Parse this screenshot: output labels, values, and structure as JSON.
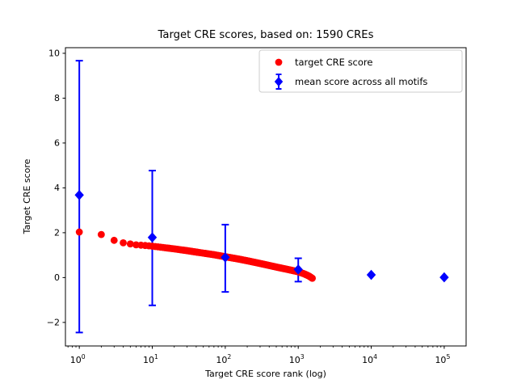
{
  "figure": {
    "background": "#ffffff",
    "axes_background": "#ffffff",
    "spine_color": "#000000"
  },
  "chart_data": {
    "type": "scatter",
    "title": "Target CRE scores, based on: 1590 CREs",
    "xlabel": "Target CRE score rank (log)",
    "ylabel": "Target CRE score",
    "x_scale": "log",
    "xlim_log10": [
      -0.19,
      5.3
    ],
    "ylim": [
      -3.05,
      10.25
    ],
    "x_tick_labels": [
      {
        "mantissa": "10",
        "exponent": "0"
      },
      {
        "mantissa": "10",
        "exponent": "1"
      },
      {
        "mantissa": "10",
        "exponent": "2"
      },
      {
        "mantissa": "10",
        "exponent": "3"
      },
      {
        "mantissa": "10",
        "exponent": "4"
      },
      {
        "mantissa": "10",
        "exponent": "5"
      }
    ],
    "x_tick_values": [
      1,
      10,
      100,
      1000,
      10000,
      100000
    ],
    "y_tick_values": [
      -2,
      0,
      2,
      4,
      6,
      8,
      10
    ],
    "y_tick_labels": [
      "−2",
      "0",
      "2",
      "4",
      "6",
      "8",
      "10"
    ],
    "grid": false,
    "legend": {
      "position": "upper right",
      "border_color": "#cccccc",
      "entries": [
        {
          "label": "target CRE score",
          "marker": "circle",
          "color": "#ff0000"
        },
        {
          "label": "mean score across all motifs",
          "marker": "diamond-errorbar",
          "color": "#0000ff"
        }
      ]
    },
    "series": [
      {
        "name": "target CRE score",
        "type": "scatter",
        "marker": "circle",
        "color": "#ff0000",
        "n_points": 1590,
        "rank_range": [
          1,
          1590
        ],
        "profile_rank_value": [
          [
            1,
            2.03
          ],
          [
            2,
            1.92
          ],
          [
            3,
            1.66
          ],
          [
            4,
            1.55
          ],
          [
            5,
            1.5
          ],
          [
            6,
            1.46
          ],
          [
            8,
            1.43
          ],
          [
            10,
            1.4
          ],
          [
            15,
            1.33
          ],
          [
            20,
            1.28
          ],
          [
            30,
            1.2
          ],
          [
            50,
            1.09
          ],
          [
            70,
            1.02
          ],
          [
            100,
            0.93
          ],
          [
            150,
            0.83
          ],
          [
            200,
            0.75
          ],
          [
            300,
            0.63
          ],
          [
            500,
            0.47
          ],
          [
            700,
            0.37
          ],
          [
            1000,
            0.26
          ],
          [
            1200,
            0.17
          ],
          [
            1400,
            0.07
          ],
          [
            1590,
            -0.05
          ]
        ]
      },
      {
        "name": "mean score across all motifs",
        "type": "scatter-errorbar",
        "marker": "diamond",
        "color": "#0000ff",
        "points": [
          {
            "x": 1,
            "mean": 3.68,
            "lo": -2.45,
            "hi": 9.67
          },
          {
            "x": 10,
            "mean": 1.79,
            "lo": -1.24,
            "hi": 4.77
          },
          {
            "x": 100,
            "mean": 0.9,
            "lo": -0.64,
            "hi": 2.36
          },
          {
            "x": 1000,
            "mean": 0.36,
            "lo": -0.18,
            "hi": 0.86
          },
          {
            "x": 10000,
            "mean": 0.12,
            "lo": 0.12,
            "hi": 0.12
          },
          {
            "x": 100000,
            "mean": 0.01,
            "lo": 0.01,
            "hi": 0.01
          }
        ]
      }
    ]
  }
}
